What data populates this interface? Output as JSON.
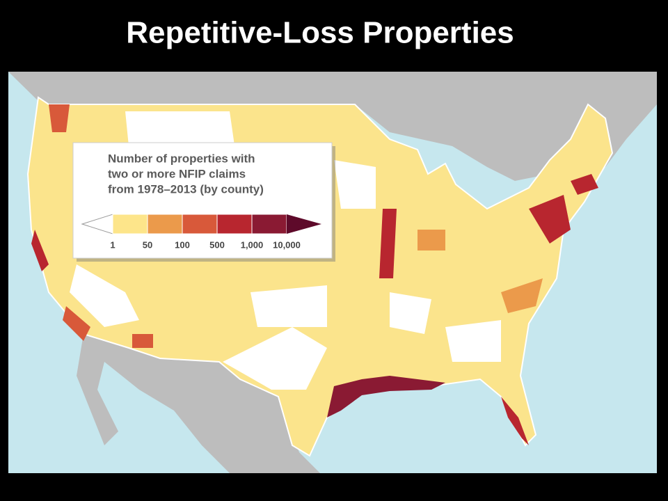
{
  "title": "Repetitive-Loss Properties",
  "legend": {
    "heading": [
      "Number of properties with",
      "two or more NFIP claims",
      "from 1978–2013 (by county)"
    ],
    "bins": [
      {
        "label": "1",
        "color": "#fde58a"
      },
      {
        "label": "50",
        "color": "#eb9a4b"
      },
      {
        "label": "100",
        "color": "#d8593a"
      },
      {
        "label": "500",
        "color": "#b8262f"
      },
      {
        "label": "1,000",
        "color": "#8a1a33"
      },
      {
        "label": "10,000",
        "color": "#5e0a2a"
      }
    ]
  }
}
